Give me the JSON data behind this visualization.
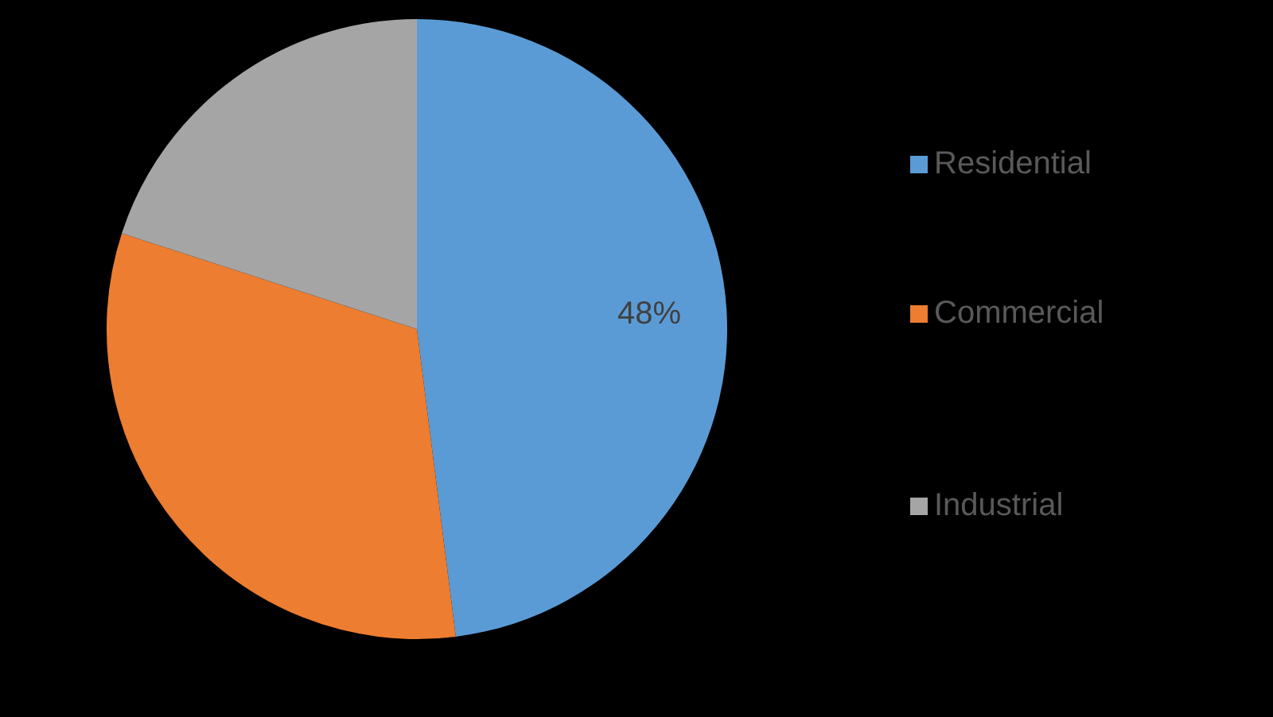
{
  "chart_data": {
    "type": "pie",
    "categories": [
      "Residential",
      "Commercial",
      "Industrial"
    ],
    "values": [
      48,
      32,
      20
    ],
    "colors": [
      "#5b9bd5",
      "#ed7d31",
      "#a5a5a5"
    ],
    "value_labels": [
      "48%",
      null,
      null
    ],
    "legend": "right"
  }
}
